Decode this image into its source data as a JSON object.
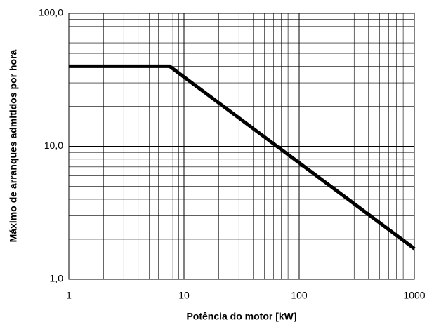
{
  "chart_data": {
    "type": "line",
    "xlabel": "Potência do motor [kW]",
    "ylabel": "Máximo de arranques admitidos por hora",
    "x": [
      1,
      7.5,
      1000
    ],
    "series": [
      {
        "name": null,
        "color": "#000000",
        "values": [
          40,
          40,
          1.7
        ]
      }
    ],
    "xscale": "log",
    "yscale": "log",
    "xlim": [
      1,
      1000
    ],
    "ylim": [
      1,
      100
    ],
    "xticks": [
      1,
      10,
      100,
      1000
    ],
    "yticks": [
      {
        "value": 1,
        "label": "1,0"
      },
      {
        "value": 10,
        "label": "10,0"
      },
      {
        "value": 100,
        "label": "100,0"
      }
    ],
    "grid": true,
    "minor_grid": true
  }
}
